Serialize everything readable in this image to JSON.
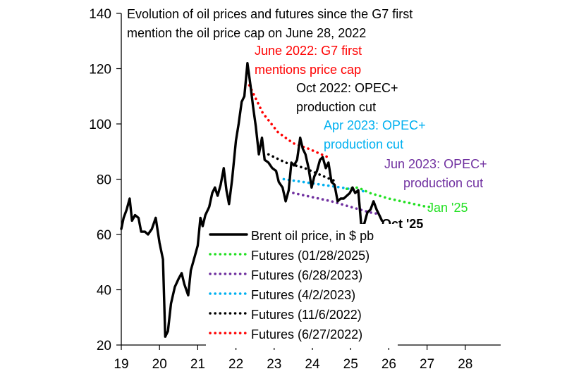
{
  "chart_data": {
    "type": "line",
    "title_lines": [
      "Evolution of oil prices and futures since the G7 first",
      "mention the oil price cap on June 28, 2022"
    ],
    "xlabel": "",
    "ylabel": "",
    "xlim": [
      19,
      28.9
    ],
    "ylim": [
      20,
      140
    ],
    "xticks": [
      19,
      20,
      21,
      22,
      23,
      24,
      25,
      26,
      27,
      28
    ],
    "xtick_labels": [
      "19",
      "20",
      "21",
      "22",
      "23",
      "24",
      "25",
      "26",
      "27",
      "28"
    ],
    "yticks": [
      20,
      40,
      60,
      80,
      100,
      120,
      140
    ],
    "ytick_labels": [
      "20",
      "40",
      "60",
      "80",
      "100",
      "120",
      "140"
    ],
    "grid": false,
    "legend_position": "bottom-center",
    "series": [
      {
        "name": "Brent oil price, in $ pb",
        "color": "#000000",
        "style": "solid",
        "points": [
          [
            19.0,
            62
          ],
          [
            19.06,
            66
          ],
          [
            19.14,
            69
          ],
          [
            19.22,
            73
          ],
          [
            19.28,
            65
          ],
          [
            19.36,
            67
          ],
          [
            19.45,
            66
          ],
          [
            19.52,
            61
          ],
          [
            19.62,
            61
          ],
          [
            19.7,
            60
          ],
          [
            19.8,
            62
          ],
          [
            19.9,
            66
          ],
          [
            20.0,
            57
          ],
          [
            20.09,
            51
          ],
          [
            20.15,
            23
          ],
          [
            20.22,
            25
          ],
          [
            20.3,
            35
          ],
          [
            20.4,
            41
          ],
          [
            20.5,
            44
          ],
          [
            20.58,
            46
          ],
          [
            20.65,
            42
          ],
          [
            20.75,
            38
          ],
          [
            20.82,
            47
          ],
          [
            20.92,
            52
          ],
          [
            21.0,
            56
          ],
          [
            21.07,
            66
          ],
          [
            21.13,
            63
          ],
          [
            21.2,
            67
          ],
          [
            21.3,
            70
          ],
          [
            21.38,
            75
          ],
          [
            21.45,
            77
          ],
          [
            21.52,
            74
          ],
          [
            21.6,
            78
          ],
          [
            21.68,
            84
          ],
          [
            21.75,
            76
          ],
          [
            21.82,
            71
          ],
          [
            21.9,
            80
          ],
          [
            22.0,
            94
          ],
          [
            22.07,
            100
          ],
          [
            22.15,
            108
          ],
          [
            22.22,
            110
          ],
          [
            22.3,
            122
          ],
          [
            22.38,
            114
          ],
          [
            22.45,
            106
          ],
          [
            22.52,
            99
          ],
          [
            22.6,
            89
          ],
          [
            22.68,
            95
          ],
          [
            22.75,
            87
          ],
          [
            22.85,
            86
          ],
          [
            22.95,
            84
          ],
          [
            23.05,
            83
          ],
          [
            23.12,
            79
          ],
          [
            23.22,
            77
          ],
          [
            23.3,
            72
          ],
          [
            23.38,
            76
          ],
          [
            23.45,
            86
          ],
          [
            23.52,
            85
          ],
          [
            23.6,
            87
          ],
          [
            23.68,
            95
          ],
          [
            23.75,
            91
          ],
          [
            23.82,
            89
          ],
          [
            23.9,
            84
          ],
          [
            23.98,
            77
          ],
          [
            24.05,
            81
          ],
          [
            24.12,
            83
          ],
          [
            24.2,
            87
          ],
          [
            24.27,
            88
          ],
          [
            24.35,
            84
          ],
          [
            24.42,
            86
          ],
          [
            24.5,
            79
          ],
          [
            24.58,
            78
          ],
          [
            24.66,
            72
          ],
          [
            24.74,
            73
          ],
          [
            24.82,
            73
          ],
          [
            24.9,
            74
          ],
          [
            24.98,
            75
          ],
          [
            25.05,
            77
          ],
          [
            25.12,
            75
          ],
          [
            25.2,
            76
          ],
          [
            25.28,
            63
          ],
          [
            25.36,
            64
          ],
          [
            25.44,
            68
          ],
          [
            25.52,
            69
          ],
          [
            25.6,
            72
          ],
          [
            25.68,
            69
          ],
          [
            25.75,
            67
          ],
          [
            25.82,
            65
          ]
        ]
      },
      {
        "name": "Futures (01/28/2025)",
        "color": "#22e022",
        "style": "dotted",
        "points": [
          [
            24.9,
            76.5
          ],
          [
            25.2,
            77
          ],
          [
            25.5,
            75
          ],
          [
            26.0,
            73
          ],
          [
            26.5,
            71.5
          ],
          [
            27.0,
            70
          ],
          [
            27.1,
            70
          ]
        ]
      },
      {
        "name": "Futures (6/28/2023)",
        "color": "#7030a0",
        "style": "dotted",
        "points": [
          [
            23.5,
            75
          ],
          [
            24.0,
            73.5
          ],
          [
            24.5,
            72
          ],
          [
            25.0,
            70
          ],
          [
            25.5,
            68
          ],
          [
            25.7,
            67.5
          ]
        ]
      },
      {
        "name": "Futures (4/2/2023)",
        "color": "#00b0f0",
        "style": "dotted",
        "points": [
          [
            23.25,
            80
          ],
          [
            23.75,
            79
          ],
          [
            24.25,
            78
          ],
          [
            24.75,
            77
          ],
          [
            25.4,
            75.5
          ]
        ]
      },
      {
        "name": "Futures (11/6/2022)",
        "color": "#000000",
        "style": "dotted",
        "points": [
          [
            22.85,
            89
          ],
          [
            23.3,
            86
          ],
          [
            23.8,
            84
          ],
          [
            24.3,
            81
          ],
          [
            24.65,
            79
          ]
        ]
      },
      {
        "name": "Futures (6/27/2022)",
        "color": "#ff0000",
        "style": "dotted",
        "points": [
          [
            22.35,
            114
          ],
          [
            22.7,
            104
          ],
          [
            23.1,
            97
          ],
          [
            23.5,
            93
          ],
          [
            23.9,
            91
          ],
          [
            24.4,
            88
          ]
        ]
      }
    ],
    "annotations": [
      {
        "lines": [
          "June 2022: G7 first",
          "mentions price cap"
        ],
        "color": "#ff0000"
      },
      {
        "lines": [
          "Oct 2022: OPEC+",
          "production cut"
        ],
        "color": "#000000"
      },
      {
        "lines": [
          "Apr 2023: OPEC+",
          "production cut"
        ],
        "color": "#00b0f0"
      },
      {
        "lines": [
          "Jun 2023: OPEC+",
          "production cut"
        ],
        "color": "#7030a0"
      }
    ],
    "end_labels": [
      {
        "text": "Jan '25",
        "color": "#22e022",
        "bold": false
      },
      {
        "text": "Oct '25",
        "color": "#000000",
        "bold": true
      }
    ]
  }
}
